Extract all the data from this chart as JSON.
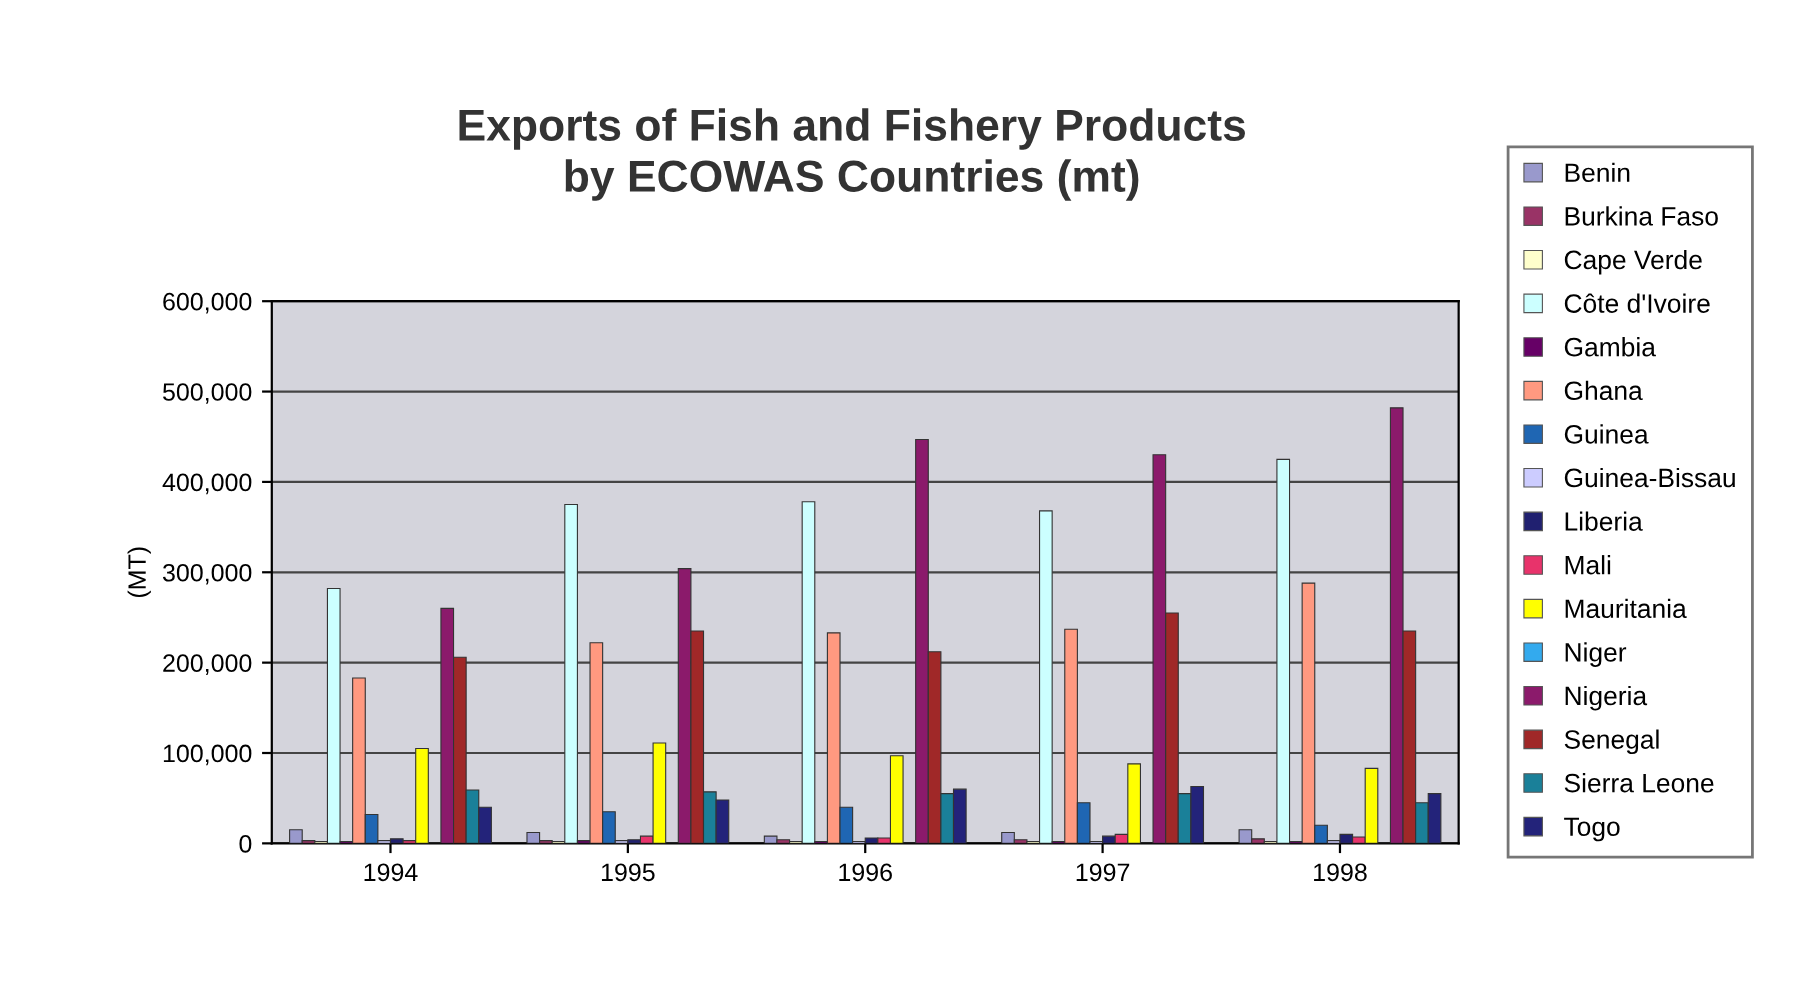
{
  "chart_data": {
    "type": "bar",
    "title": "Exports of Fish and Fishery Products\nby ECOWAS Countries (mt)",
    "ylabel": "(MT)",
    "categories": [
      "1994",
      "1995",
      "1996",
      "1997",
      "1998"
    ],
    "series": [
      {
        "name": "Benin",
        "color": "#9999cc",
        "values": [
          15000,
          12000,
          8000,
          12000,
          15000
        ]
      },
      {
        "name": "Burkina Faso",
        "color": "#993366",
        "values": [
          3000,
          3000,
          4000,
          4000,
          5000
        ]
      },
      {
        "name": "Cape Verde",
        "color": "#ffffcc",
        "values": [
          2000,
          2000,
          2000,
          2000,
          2000
        ]
      },
      {
        "name": "Côte d'Ivoire",
        "color": "#ccffff",
        "values": [
          282000,
          375000,
          378000,
          368000,
          425000
        ]
      },
      {
        "name": "Gambia",
        "color": "#660066",
        "values": [
          2000,
          3000,
          2000,
          2000,
          2000
        ]
      },
      {
        "name": "Ghana",
        "color": "#ff9980",
        "values": [
          183000,
          222000,
          233000,
          237000,
          288000
        ]
      },
      {
        "name": "Guinea",
        "color": "#1f66b3",
        "values": [
          32000,
          35000,
          40000,
          45000,
          20000
        ]
      },
      {
        "name": "Guinea-Bissau",
        "color": "#ccccff",
        "values": [
          3000,
          3000,
          2000,
          2000,
          3000
        ]
      },
      {
        "name": "Liberia",
        "color": "#202070",
        "values": [
          5000,
          4000,
          6000,
          8000,
          10000
        ]
      },
      {
        "name": "Mali",
        "color": "#e8336b",
        "values": [
          3000,
          8000,
          6000,
          10000,
          7000
        ]
      },
      {
        "name": "Mauritania",
        "color": "#ffff00",
        "values": [
          105000,
          111000,
          97000,
          88000,
          83000
        ]
      },
      {
        "name": "Niger",
        "color": "#33aaee",
        "values": [
          null,
          null,
          null,
          null,
          null
        ]
      },
      {
        "name": "Nigeria",
        "color": "#8b1a6b",
        "values": [
          260000,
          304000,
          447000,
          430000,
          482000
        ]
      },
      {
        "name": "Senegal",
        "color": "#a02828",
        "values": [
          206000,
          235000,
          212000,
          255000,
          235000
        ]
      },
      {
        "name": "Sierra Leone",
        "color": "#1a8099",
        "values": [
          59000,
          57000,
          55000,
          55000,
          45000
        ]
      },
      {
        "name": "Togo",
        "color": "#23237a",
        "values": [
          40000,
          48000,
          60000,
          63000,
          55000
        ]
      }
    ],
    "ylim": [
      0,
      600000
    ],
    "yticks": [
      {
        "value": 0,
        "label": "0"
      },
      {
        "value": 100000,
        "label": "100,000"
      },
      {
        "value": 200000,
        "label": "200,000"
      },
      {
        "value": 300000,
        "label": "300,000"
      },
      {
        "value": 400000,
        "label": "400,000"
      },
      {
        "value": 500000,
        "label": "500,000"
      },
      {
        "value": 600000,
        "label": "600,000"
      }
    ],
    "grid": "y",
    "legend": "right"
  }
}
